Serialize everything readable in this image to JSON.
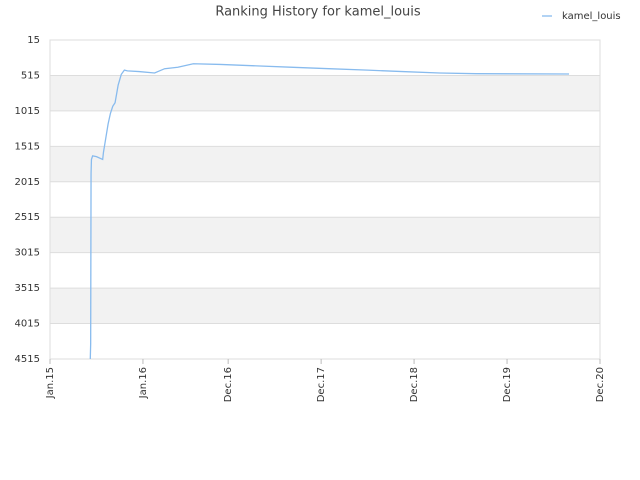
{
  "chart_data": {
    "type": "line",
    "title": "Ranking History for kamel_louis",
    "xlim": [
      0,
      71
    ],
    "xticks": [
      {
        "value": 0,
        "label": "Jan.15"
      },
      {
        "value": 12,
        "label": "Jan.16"
      },
      {
        "value": 23,
        "label": "Dec.16"
      },
      {
        "value": 35,
        "label": "Dec.17"
      },
      {
        "value": 47,
        "label": "Dec.18"
      },
      {
        "value": 59,
        "label": "Dec.19"
      },
      {
        "value": 71,
        "label": "Dec.20"
      }
    ],
    "ylim": [
      4515,
      15
    ],
    "yticks": [
      15,
      515,
      1015,
      1515,
      2015,
      2515,
      3015,
      3515,
      4015,
      4515
    ],
    "grid": true,
    "legend": "top-right",
    "series": [
      {
        "name": "kamel_louis",
        "color": "#88bbee",
        "x": [
          5.2,
          5.25,
          5.3,
          5.35,
          5.5,
          6.0,
          6.8,
          6.9,
          7.2,
          7.5,
          7.8,
          8.1,
          8.4,
          8.8,
          9.2,
          9.6,
          10.0,
          11.5,
          13.5,
          14.8,
          16.5,
          18.5,
          22.0,
          26.7,
          31.4,
          36.0,
          41.0,
          45.5,
          50.3,
          55.0,
          67.0
        ],
        "values": [
          4515,
          4300,
          1900,
          1700,
          1650,
          1660,
          1700,
          1600,
          1400,
          1200,
          1050,
          950,
          900,
          650,
          500,
          440,
          450,
          460,
          480,
          420,
          400,
          350,
          360,
          380,
          400,
          420,
          440,
          460,
          480,
          490,
          495
        ]
      }
    ]
  }
}
